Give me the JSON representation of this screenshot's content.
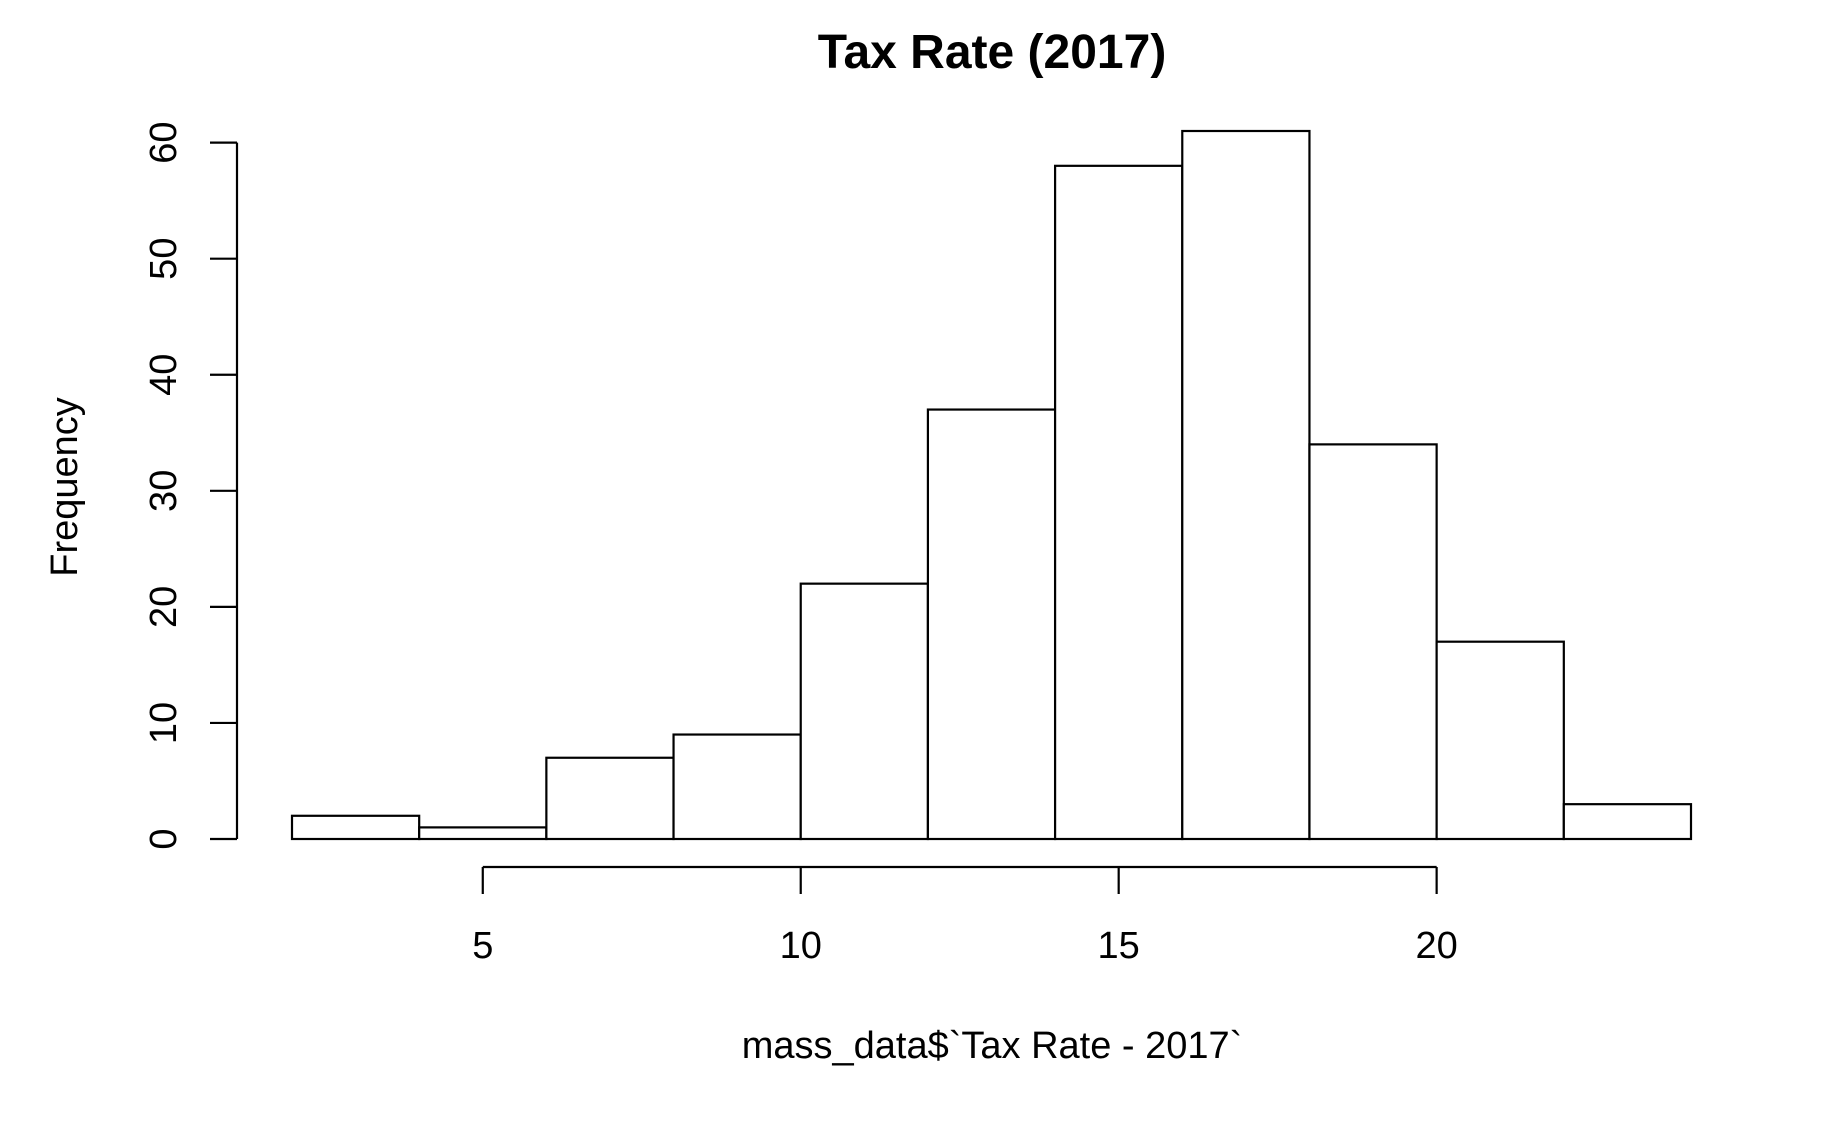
{
  "chart_data": {
    "type": "bar",
    "title": "Tax Rate (2017)",
    "xlabel": "mass_data$`Tax Rate - 2017`",
    "ylabel": "Frequency",
    "bins": [
      {
        "start": 2,
        "end": 4,
        "count": 2
      },
      {
        "start": 4,
        "end": 6,
        "count": 1
      },
      {
        "start": 6,
        "end": 8,
        "count": 7
      },
      {
        "start": 8,
        "end": 10,
        "count": 9
      },
      {
        "start": 10,
        "end": 12,
        "count": 22
      },
      {
        "start": 12,
        "end": 14,
        "count": 37
      },
      {
        "start": 14,
        "end": 16,
        "count": 58
      },
      {
        "start": 16,
        "end": 18,
        "count": 61
      },
      {
        "start": 18,
        "end": 20,
        "count": 34
      },
      {
        "start": 20,
        "end": 22,
        "count": 17
      },
      {
        "start": 22,
        "end": 24,
        "count": 3
      }
    ],
    "x_ticks": [
      5,
      10,
      15,
      20
    ],
    "x_tick_labels": [
      "5",
      "10",
      "15",
      "20"
    ],
    "y_ticks": [
      0,
      10,
      20,
      30,
      40,
      50,
      60
    ],
    "y_tick_labels": [
      "0",
      "10",
      "20",
      "30",
      "40",
      "50",
      "60"
    ],
    "xlim": [
      2,
      24
    ],
    "ylim": [
      0,
      61
    ],
    "grid": false,
    "legend": "none"
  }
}
